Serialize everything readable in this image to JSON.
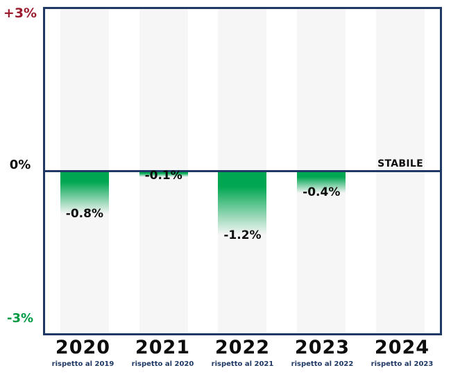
{
  "chart_data": {
    "type": "bar",
    "title": "",
    "unit": "%",
    "ylim": [
      -3,
      3
    ],
    "grid": "off",
    "legend": "none",
    "y_ticks": [
      "+3%",
      "0%",
      "-3%"
    ],
    "categories": [
      "2020",
      "2021",
      "2022",
      "2023",
      "2024"
    ],
    "columns": [
      {
        "year": "2020",
        "comparison": "rispetto al 2019",
        "value": -0.8,
        "label": "-0.8%",
        "stable": false
      },
      {
        "year": "2021",
        "comparison": "rispetto al 2020",
        "value": -0.1,
        "label": "-0.1%",
        "stable": false
      },
      {
        "year": "2022",
        "comparison": "rispetto al 2021",
        "value": -1.2,
        "label": "-1.2%",
        "stable": false
      },
      {
        "year": "2023",
        "comparison": "rispetto al 2022",
        "value": -0.4,
        "label": "-0.4%",
        "stable": false
      },
      {
        "year": "2024",
        "comparison": "rispetto al 2023",
        "value": 0,
        "label": "STABILE",
        "stable": true
      }
    ],
    "colors": {
      "bar_green": "#00A651",
      "axis_navy": "#1F3864",
      "positive_red": "#9A1C2E",
      "negative_green": "#009A44",
      "band_gray": "#F6F6F6"
    }
  }
}
